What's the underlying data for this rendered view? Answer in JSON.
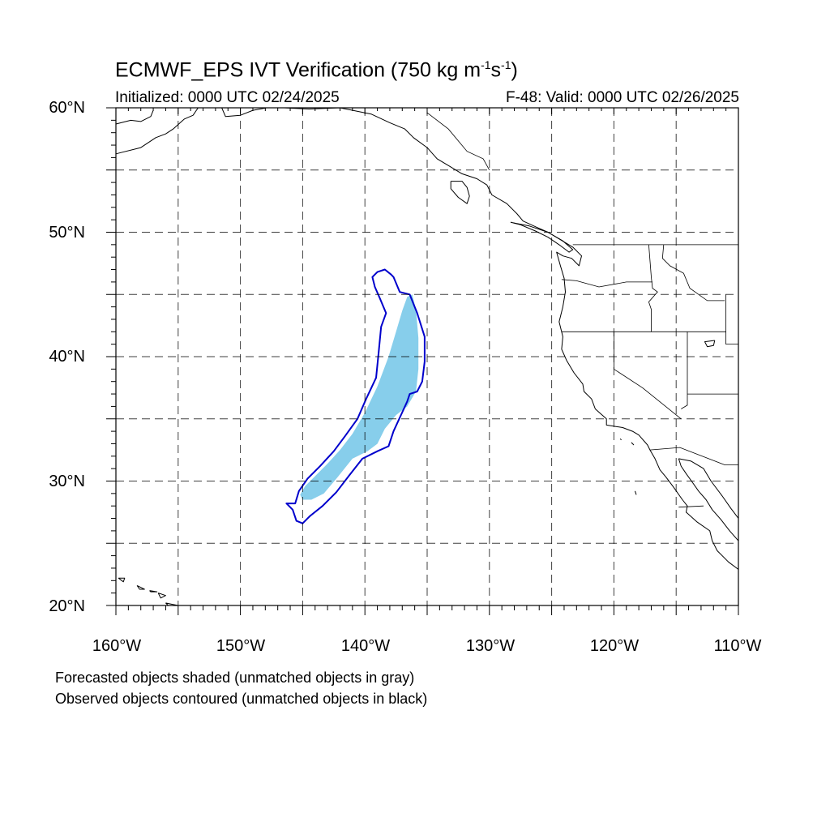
{
  "title": {
    "text": "ECMWF_EPS IVT Verification (750 kg m",
    "exp1": "-1",
    "mid": "s",
    "exp2": "-1",
    "end": ")"
  },
  "subtitle_left": "Initialized: 0000 UTC 02/24/2025",
  "subtitle_right": "F-48: Valid: 0000 UTC 02/26/2025",
  "lat_labels": [
    "60°N",
    "50°N",
    "40°N",
    "30°N",
    "20°N"
  ],
  "lon_labels": [
    "160°W",
    "150°W",
    "140°W",
    "130°W",
    "120°W",
    "110°W"
  ],
  "footnotes": [
    "Forecasted objects shaded (unmatched objects in gray)",
    "Observed objects contoured (unmatched objects in black)"
  ],
  "colors": {
    "forecast_fill": "#87ceeb",
    "observed_contour": "#0000cc",
    "coastline": "#000000",
    "grid": "#000000"
  },
  "chart_data": {
    "type": "map",
    "projection": "cylindrical-equidistant",
    "lon_range": [
      -160,
      -110
    ],
    "lat_range": [
      20,
      60
    ],
    "grid_spacing_deg": 5,
    "grid": true,
    "forecast_object": [
      [
        -145.2,
        28.9
      ],
      [
        -144.8,
        29.6
      ],
      [
        -144,
        30.4
      ],
      [
        -143,
        31.4
      ],
      [
        -142,
        32.5
      ],
      [
        -141,
        33.8
      ],
      [
        -140,
        35.5
      ],
      [
        -139,
        37.6
      ],
      [
        -138.1,
        40
      ],
      [
        -137.5,
        42
      ],
      [
        -137,
        43.7
      ],
      [
        -136.6,
        44.8
      ],
      [
        -136.2,
        45
      ],
      [
        -135.9,
        43.8
      ],
      [
        -135.7,
        41.5
      ],
      [
        -135.7,
        39
      ],
      [
        -135.9,
        37.2
      ],
      [
        -136.6,
        36
      ],
      [
        -137.5,
        35.3
      ],
      [
        -138.4,
        34.2
      ],
      [
        -139,
        33
      ],
      [
        -139.8,
        32.4
      ],
      [
        -141,
        31.8
      ],
      [
        -142.2,
        30.3
      ],
      [
        -143.3,
        29
      ],
      [
        -144.3,
        28.5
      ],
      [
        -145,
        28.5
      ]
    ],
    "observed_object": [
      [
        -145.6,
        28.2
      ],
      [
        -145.3,
        29.2
      ],
      [
        -144.6,
        30.2
      ],
      [
        -143.6,
        31.2
      ],
      [
        -142.5,
        32.4
      ],
      [
        -141.6,
        33.6
      ],
      [
        -140.6,
        35
      ],
      [
        -139.9,
        36.6
      ],
      [
        -139.1,
        38.3
      ],
      [
        -138.9,
        40.3
      ],
      [
        -138.7,
        42.4
      ],
      [
        -138.3,
        43.5
      ],
      [
        -138.8,
        44.7
      ],
      [
        -139.2,
        45.6
      ],
      [
        -139.4,
        46.4
      ],
      [
        -139,
        46.8
      ],
      [
        -138.4,
        47
      ],
      [
        -137.9,
        46.6
      ],
      [
        -137.7,
        46.4
      ],
      [
        -137.2,
        45.2
      ],
      [
        -136.4,
        45
      ],
      [
        -135.8,
        43.5
      ],
      [
        -135.2,
        41.6
      ],
      [
        -135.2,
        39.6
      ],
      [
        -135.4,
        38
      ],
      [
        -135.8,
        37.2
      ],
      [
        -136.4,
        37
      ],
      [
        -136.6,
        36.4
      ],
      [
        -137.1,
        35.3
      ],
      [
        -137.7,
        34
      ],
      [
        -138.1,
        32.8
      ],
      [
        -139,
        32.4
      ],
      [
        -140.2,
        31.8
      ],
      [
        -141.3,
        30.4
      ],
      [
        -142.3,
        29.1
      ],
      [
        -143.4,
        28
      ],
      [
        -144.4,
        27.2
      ],
      [
        -145,
        26.6
      ],
      [
        -145.5,
        26.8
      ],
      [
        -145.8,
        27.7
      ],
      [
        -146.3,
        28.2
      ]
    ],
    "coastlines": [
      [
        [
          -160,
          56.3
        ],
        [
          -158,
          56.8
        ],
        [
          -156.8,
          57.6
        ],
        [
          -156,
          57.9
        ],
        [
          -155.4,
          58.3
        ],
        [
          -154.5,
          59.1
        ],
        [
          -153.8,
          59.4
        ],
        [
          -153.4,
          60
        ]
      ],
      [
        [
          -160,
          58.7
        ],
        [
          -158.8,
          59
        ],
        [
          -158,
          58.9
        ],
        [
          -157.2,
          59.3
        ],
        [
          -157,
          59.8
        ]
      ],
      [
        [
          -151.5,
          60
        ],
        [
          -151.2,
          59.3
        ],
        [
          -150,
          59.4
        ],
        [
          -149,
          59.8
        ],
        [
          -147.9,
          60
        ]
      ],
      [
        [
          -146.5,
          60
        ],
        [
          -144.5,
          59.9
        ],
        [
          -142,
          60
        ],
        [
          -140.5,
          59.7
        ],
        [
          -139.5,
          59.5
        ],
        [
          -138,
          58.8
        ],
        [
          -136.8,
          58.3
        ],
        [
          -136.1,
          57.6
        ],
        [
          -135,
          56.8
        ],
        [
          -134.2,
          55.9
        ],
        [
          -133.2,
          55.3
        ],
        [
          -132.2,
          54.7
        ],
        [
          -131,
          54.3
        ],
        [
          -130.2,
          53.8
        ],
        [
          -129.8,
          53
        ],
        [
          -128.6,
          52.3
        ],
        [
          -127.8,
          51.5
        ],
        [
          -127.3,
          50.9
        ],
        [
          -126.2,
          50.4
        ],
        [
          -125.3,
          50
        ],
        [
          -124.3,
          49.4
        ],
        [
          -123.3,
          48.8
        ],
        [
          -122.6,
          48.1
        ],
        [
          -122.8,
          47.3
        ],
        [
          -123.4,
          47.9
        ],
        [
          -124.1,
          48.1
        ],
        [
          -124.6,
          48.4
        ],
        [
          -124.3,
          47.3
        ],
        [
          -124,
          46.3
        ],
        [
          -123.9,
          45.2
        ],
        [
          -124.1,
          44
        ],
        [
          -124.4,
          42.8
        ],
        [
          -124.1,
          41.6
        ],
        [
          -124.2,
          40.6
        ],
        [
          -123.8,
          39.7
        ],
        [
          -123.2,
          38.7
        ],
        [
          -122.5,
          37.8
        ],
        [
          -122.4,
          37.2
        ],
        [
          -121.8,
          36.6
        ],
        [
          -121.5,
          35.8
        ],
        [
          -120.6,
          35
        ],
        [
          -120.6,
          34.5
        ],
        [
          -119.3,
          34.3
        ],
        [
          -118.5,
          34
        ],
        [
          -118,
          33.7
        ],
        [
          -117.3,
          32.9
        ],
        [
          -117.1,
          32.5
        ],
        [
          -116.7,
          31.8
        ],
        [
          -116.3,
          30.9
        ],
        [
          -115.8,
          30.3
        ],
        [
          -115.2,
          29.5
        ],
        [
          -114.5,
          28.5
        ],
        [
          -114.1,
          28
        ],
        [
          -114.2,
          27.5
        ],
        [
          -113.3,
          26.7
        ],
        [
          -112.3,
          26
        ],
        [
          -112.1,
          25.2
        ],
        [
          -111.7,
          24.4
        ],
        [
          -110.8,
          23.5
        ],
        [
          -110,
          22.9
        ]
      ],
      [
        [
          -114.8,
          31.8
        ],
        [
          -114.6,
          31.2
        ],
        [
          -114.2,
          30.6
        ],
        [
          -113.7,
          29.9
        ],
        [
          -113.2,
          29.2
        ],
        [
          -112.6,
          28.5
        ],
        [
          -112.1,
          27.7
        ],
        [
          -111.4,
          26.9
        ],
        [
          -110.7,
          26
        ],
        [
          -110,
          25.2
        ]
      ],
      [
        [
          -114.8,
          31.8
        ],
        [
          -113.8,
          31.6
        ],
        [
          -112.8,
          31
        ],
        [
          -112.2,
          30
        ],
        [
          -111.3,
          28.8
        ],
        [
          -110.6,
          27.8
        ],
        [
          -110,
          27
        ]
      ],
      [
        [
          -133.1,
          54.1
        ],
        [
          -132.2,
          54.1
        ],
        [
          -131.8,
          53.6
        ],
        [
          -131.6,
          52.9
        ],
        [
          -131.8,
          52.3
        ],
        [
          -132.5,
          52.8
        ],
        [
          -133.1,
          53.5
        ],
        [
          -133.1,
          54.1
        ]
      ],
      [
        [
          -128.3,
          50.8
        ],
        [
          -127.5,
          50.6
        ],
        [
          -126.3,
          50.1
        ],
        [
          -125.3,
          49.6
        ],
        [
          -124.4,
          49
        ],
        [
          -123.6,
          48.4
        ],
        [
          -123.3,
          48.6
        ],
        [
          -124.1,
          49.3
        ],
        [
          -125.3,
          50
        ],
        [
          -126.8,
          50.5
        ],
        [
          -128.3,
          50.8
        ]
      ],
      [
        [
          -159.8,
          22.2
        ],
        [
          -159.3,
          22.2
        ],
        [
          -159.4,
          21.9
        ],
        [
          -159.8,
          22.2
        ]
      ],
      [
        [
          -158.3,
          21.6
        ],
        [
          -157.7,
          21.3
        ],
        [
          -158.1,
          21.3
        ],
        [
          -158.3,
          21.6
        ]
      ],
      [
        [
          -157.3,
          21.2
        ],
        [
          -156.7,
          21.1
        ],
        [
          -157.2,
          21.1
        ],
        [
          -157.3,
          21.2
        ]
      ],
      [
        [
          -156.6,
          21
        ],
        [
          -156,
          20.8
        ],
        [
          -156.4,
          20.6
        ],
        [
          -156.6,
          21
        ]
      ],
      [
        [
          -156,
          20.2
        ],
        [
          -155.5,
          20.1
        ],
        [
          -155,
          19.8
        ],
        [
          -155.8,
          19.9
        ],
        [
          -156,
          20.2
        ]
      ],
      [
        [
          -111.9,
          41.3
        ],
        [
          -112.7,
          41.2
        ],
        [
          -112.5,
          40.8
        ],
        [
          -112,
          40.9
        ],
        [
          -111.9,
          41.3
        ]
      ],
      [
        [
          -119.5,
          33.4
        ],
        [
          -119.4,
          33.3
        ]
      ],
      [
        [
          -118.6,
          33.1
        ],
        [
          -118.4,
          32.9
        ]
      ],
      [
        [
          -118.3,
          29.2
        ],
        [
          -118.2,
          28.9
        ]
      ]
    ],
    "boundaries": [
      [
        [
          -141,
          60
        ],
        [
          -141,
          59.9
        ]
      ],
      [
        [
          -135,
          59.6
        ],
        [
          -133.3,
          58.3
        ],
        [
          -131.8,
          56.5
        ],
        [
          -130.5,
          55.9
        ],
        [
          -130,
          55
        ]
      ],
      [
        [
          -123.3,
          49
        ],
        [
          -110,
          49
        ]
      ],
      [
        [
          -117.2,
          49
        ],
        [
          -117,
          46.4
        ],
        [
          -116.9,
          45.5
        ],
        [
          -116.5,
          45.2
        ],
        [
          -117.2,
          44.4
        ],
        [
          -117,
          43.8
        ],
        [
          -117,
          42
        ]
      ],
      [
        [
          -124.2,
          46.2
        ],
        [
          -123,
          46.1
        ],
        [
          -121.2,
          45.6
        ],
        [
          -119,
          46
        ],
        [
          -116.9,
          46
        ]
      ],
      [
        [
          -124.2,
          42
        ],
        [
          -111,
          42
        ]
      ],
      [
        [
          -116,
          49
        ],
        [
          -116.1,
          47.9
        ],
        [
          -115.5,
          47.3
        ],
        [
          -114.4,
          46.7
        ],
        [
          -113.9,
          45.5
        ],
        [
          -112.5,
          44.5
        ],
        [
          -111.1,
          44.5
        ]
      ],
      [
        [
          -111,
          45
        ],
        [
          -111,
          41
        ],
        [
          -110,
          41
        ]
      ],
      [
        [
          -120,
          42
        ],
        [
          -120,
          39
        ],
        [
          -117.7,
          37.5
        ],
        [
          -114.6,
          35
        ]
      ],
      [
        [
          -114.1,
          42
        ],
        [
          -114.1,
          36.1
        ],
        [
          -114.6,
          35.8
        ]
      ],
      [
        [
          -114.1,
          37
        ],
        [
          -110,
          37
        ]
      ],
      [
        [
          -117.1,
          32.5
        ],
        [
          -114.7,
          32.7
        ],
        [
          -111.1,
          31.3
        ],
        [
          -110,
          31.3
        ]
      ],
      [
        [
          -114.8,
          27.9
        ],
        [
          -112.8,
          28
        ]
      ]
    ]
  }
}
